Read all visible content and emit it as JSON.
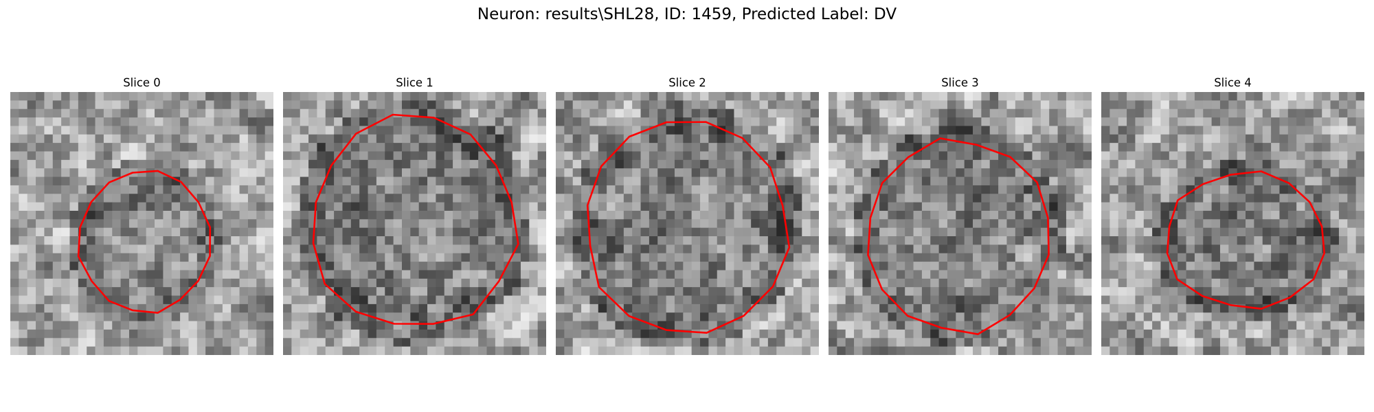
{
  "figure": {
    "title": "Neuron: results\\SHL28, ID: 1459, Predicted Label: DV"
  },
  "panels": [
    {
      "title": "Slice 0",
      "seed": 11,
      "contour_color": "#ff0000"
    },
    {
      "title": "Slice 1",
      "seed": 23,
      "contour_color": "#ff0000"
    },
    {
      "title": "Slice 2",
      "seed": 37,
      "contour_color": "#ff0000"
    },
    {
      "title": "Slice 3",
      "seed": 41,
      "contour_color": "#ff0000"
    },
    {
      "title": "Slice 4",
      "seed": 59,
      "contour_color": "#ff0000"
    }
  ],
  "colors": {
    "background": "#ffffff",
    "contour": "#ff0000",
    "colormap": "grayscale"
  }
}
